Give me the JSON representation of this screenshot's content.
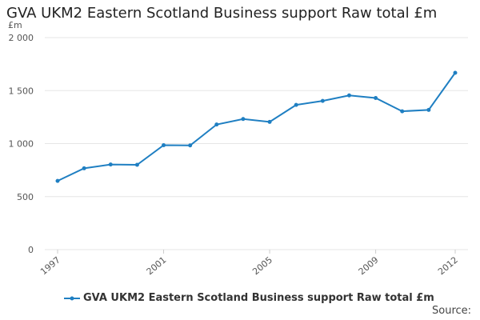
{
  "title": "GVA UKM2 Eastern Scotland Business support Raw total £m",
  "source_label": "Source:",
  "colors": {
    "series": "#1f7fc2"
  },
  "chart_data": {
    "type": "line",
    "title": "GVA UKM2 Eastern Scotland Business support Raw total £m",
    "ylabel": "£m",
    "xlabel": "",
    "ylim": [
      0,
      2000
    ],
    "yticks": [
      0,
      500,
      1000,
      1500,
      2000
    ],
    "ytick_labels": [
      "0",
      "500",
      "1 000",
      "1 500",
      "2 000"
    ],
    "xticks": [
      1997,
      2001,
      2005,
      2009,
      2012
    ],
    "x": [
      1997,
      1998,
      1999,
      2000,
      2001,
      2002,
      2003,
      2004,
      2005,
      2006,
      2007,
      2008,
      2009,
      2010,
      2011,
      2012
    ],
    "series": [
      {
        "name": "GVA UKM2 Eastern Scotland Business support Raw total £m",
        "values": [
          648,
          767,
          803,
          800,
          985,
          983,
          1180,
          1232,
          1205,
          1365,
          1403,
          1455,
          1430,
          1305,
          1318,
          1668
        ]
      }
    ],
    "grid": true,
    "legend": "bottom"
  }
}
